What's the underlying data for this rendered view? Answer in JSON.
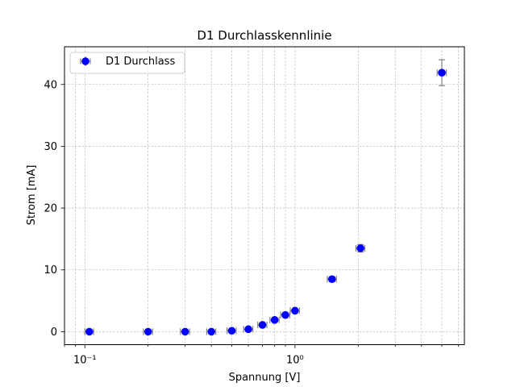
{
  "chart_data": {
    "type": "scatter",
    "title": "D1 Durchlasskennlinie",
    "xlabel": "Spannung [V]",
    "ylabel": "Strom [mA]",
    "xscale": "log",
    "xlim": [
      0.08,
      6.4
    ],
    "ylim": [
      -2.1,
      46.1
    ],
    "xticks_major": [
      0.1,
      1
    ],
    "xtick_labels": [
      "10⁻¹",
      "10⁰"
    ],
    "yticks": [
      0,
      10,
      20,
      30,
      40
    ],
    "ytick_labels": [
      "0",
      "10",
      "20",
      "30",
      "40"
    ],
    "grid": true,
    "legend_position": "upper left",
    "series": [
      {
        "name": "D1 Durchlass",
        "marker_color": "#0000ff",
        "errorbar_color": "#808080",
        "points": [
          {
            "x": 0.105,
            "y": 0.0,
            "yerr": 0.05,
            "xerr": 0.005
          },
          {
            "x": 0.2,
            "y": 0.0,
            "yerr": 0.05,
            "xerr": 0.01
          },
          {
            "x": 0.3,
            "y": 0.0,
            "yerr": 0.05,
            "xerr": 0.015
          },
          {
            "x": 0.4,
            "y": 0.0,
            "yerr": 0.05,
            "xerr": 0.02
          },
          {
            "x": 0.5,
            "y": 0.15,
            "yerr": 0.05,
            "xerr": 0.025
          },
          {
            "x": 0.6,
            "y": 0.4,
            "yerr": 0.05,
            "xerr": 0.03
          },
          {
            "x": 0.7,
            "y": 1.1,
            "yerr": 0.1,
            "xerr": 0.035
          },
          {
            "x": 0.8,
            "y": 1.9,
            "yerr": 0.1,
            "xerr": 0.04
          },
          {
            "x": 0.9,
            "y": 2.7,
            "yerr": 0.15,
            "xerr": 0.045
          },
          {
            "x": 1.0,
            "y": 3.4,
            "yerr": 0.2,
            "xerr": 0.05
          },
          {
            "x": 1.5,
            "y": 8.5,
            "yerr": 0.4,
            "xerr": 0.075
          },
          {
            "x": 2.05,
            "y": 13.5,
            "yerr": 0.6,
            "xerr": 0.1
          },
          {
            "x": 5.0,
            "y": 41.9,
            "yerr": 2.1,
            "xerr": 0.25
          }
        ]
      }
    ]
  }
}
